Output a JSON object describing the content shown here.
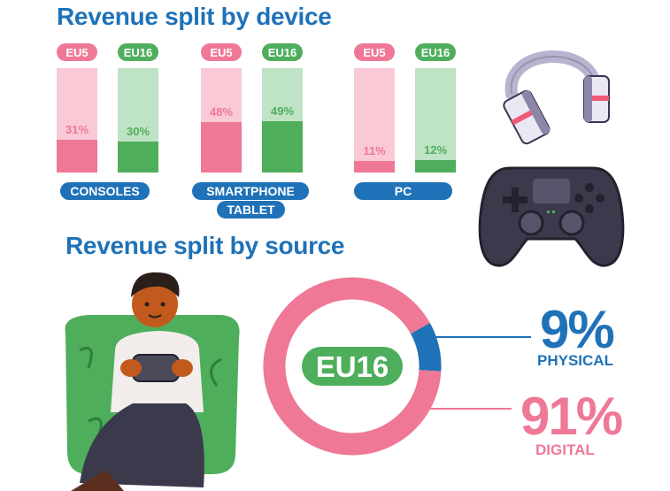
{
  "device_section": {
    "title": "Revenue split by device"
  },
  "source_section": {
    "title": "Revenue split by source"
  },
  "chart_data": [
    {
      "type": "bar",
      "title": "Revenue split by device",
      "categories": [
        "CONSOLES",
        "SMARTPHONE TABLET",
        "PC"
      ],
      "category_lines": [
        [
          "CONSOLES"
        ],
        [
          "SMARTPHONE",
          "TABLET"
        ],
        [
          "PC"
        ]
      ],
      "ylim": [
        0,
        100
      ],
      "series": [
        {
          "name": "EU5",
          "values": [
            31,
            48,
            11
          ],
          "labels": [
            "31%",
            "48%",
            "11%"
          ],
          "color": "#ef7896",
          "track_color": "#f9c9d6"
        },
        {
          "name": "EU16",
          "values": [
            30,
            49,
            12
          ],
          "labels": [
            "30%",
            "49%",
            "12%"
          ],
          "color": "#4fae5c",
          "track_color": "#bfe3c5"
        }
      ]
    },
    {
      "type": "pie",
      "title": "Revenue split by source",
      "center_label": "EU16",
      "slices": [
        {
          "name": "PHYSICAL",
          "value": 9,
          "label": "9%",
          "color": "#1f72b8"
        },
        {
          "name": "DIGITAL",
          "value": 91,
          "label": "91%",
          "color": "#ef7896"
        }
      ]
    }
  ],
  "colors": {
    "heading": "#1f72b8",
    "eu5": "#ef7896",
    "eu16": "#4fae5c",
    "physical": "#1f72b8",
    "digital": "#ef7896"
  },
  "illustrations": {
    "headphones": "headphones-icon",
    "controller": "game-controller-icon",
    "gamer": "gamer-illustration"
  }
}
